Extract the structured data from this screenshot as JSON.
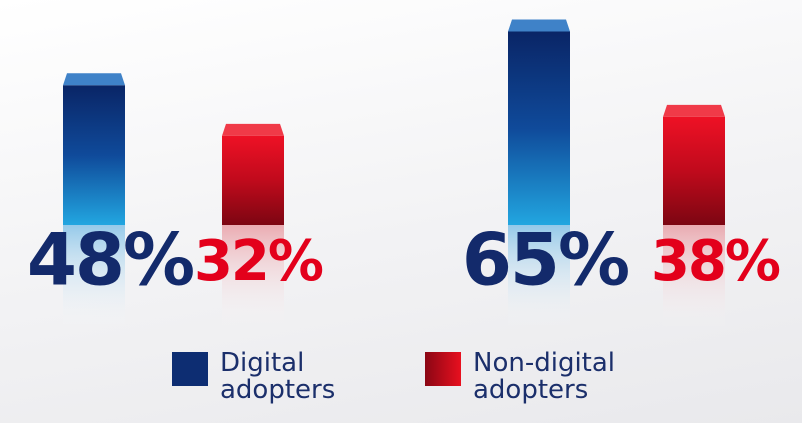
{
  "chart_data": {
    "type": "bar",
    "categories": [
      null,
      null
    ],
    "series": [
      {
        "name": "Digital adopters",
        "color": "#0d2d72",
        "values": [
          48,
          65
        ],
        "value_labels": [
          "48%",
          "65%"
        ]
      },
      {
        "name": "Non-digital adopters",
        "color": "#d90a1c",
        "values": [
          32,
          38
        ],
        "value_labels": [
          "32%",
          "38%"
        ]
      }
    ],
    "ylim": [
      0,
      68
    ]
  }
}
